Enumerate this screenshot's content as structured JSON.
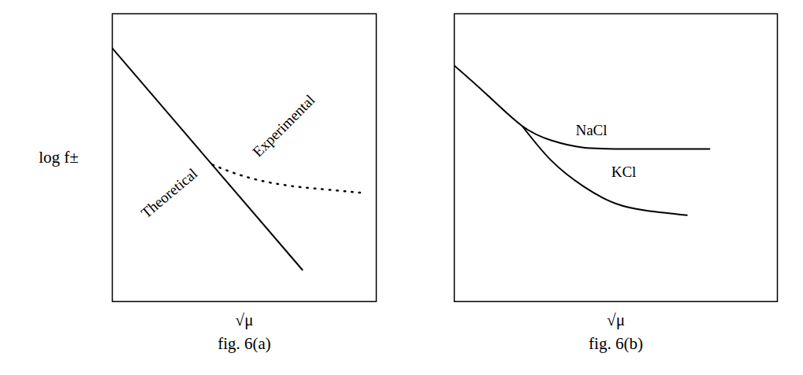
{
  "chart_data": [
    {
      "type": "line",
      "title": "fig. 6(a)",
      "x_label": "√μ",
      "y_label": "log f±",
      "xlim": [
        0,
        10
      ],
      "ylim": [
        0,
        10
      ],
      "tick_labels": false,
      "grid": false,
      "series": [
        {
          "name": "Theoretical",
          "color": "#000000",
          "line_style": "solid",
          "x": [
            0,
            7.2
          ],
          "values": [
            8.8,
            1.1
          ]
        },
        {
          "name": "Experimental",
          "color": "#000000",
          "line_style": "dotted",
          "x": [
            3.8,
            5,
            6.5,
            8,
            9.4
          ],
          "values": [
            4.75,
            4.35,
            4.05,
            3.9,
            3.78
          ]
        }
      ]
    },
    {
      "type": "line",
      "title": "fig. 6(b)",
      "x_label": "√μ",
      "xlim": [
        0,
        10
      ],
      "ylim": [
        0,
        10
      ],
      "tick_labels": false,
      "grid": false,
      "series": [
        {
          "name": "NaCl",
          "color": "#000000",
          "line_style": "solid",
          "x": [
            0,
            1,
            2.1,
            3,
            4,
            5.5,
            7.9
          ],
          "values": [
            8.2,
            7.2,
            6.1,
            5.6,
            5.35,
            5.3,
            5.3
          ]
        },
        {
          "name": "KCl",
          "color": "#000000",
          "line_style": "solid",
          "x": [
            2.1,
            3,
            4,
            5,
            6,
            7.2
          ],
          "values": [
            6.1,
            4.9,
            4.0,
            3.4,
            3.15,
            3.0
          ]
        }
      ]
    }
  ]
}
